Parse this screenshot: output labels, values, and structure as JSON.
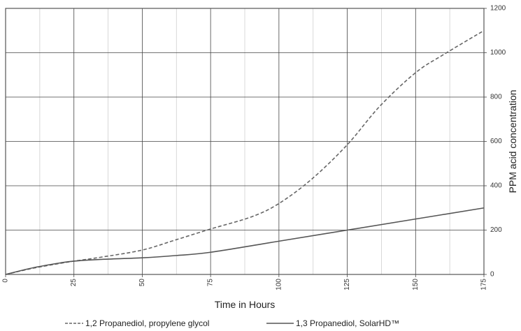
{
  "chart_data": {
    "type": "line",
    "title": "",
    "xlabel": "Time in Hours",
    "ylabel": "PPM acid concentration",
    "xlim": [
      0,
      175
    ],
    "ylim": [
      0,
      1200
    ],
    "x_ticks": [
      0,
      25,
      50,
      75,
      100,
      125,
      150,
      175
    ],
    "y_ticks": [
      0,
      200,
      400,
      600,
      800,
      1000,
      1200
    ],
    "x_ticks_label": [
      "0",
      "25",
      "50",
      "75",
      "100",
      "125",
      "150",
      "175"
    ],
    "y_ticks_label": [
      "0",
      "200",
      "400",
      "600",
      "800",
      "1000",
      "1200"
    ],
    "y_axis_side": "right",
    "grid": true,
    "legend_position": "bottom",
    "series": [
      {
        "name": "1,2 Propanediol, propylene glycol",
        "style": "dashed",
        "color": "#666666",
        "x": [
          0,
          10,
          20,
          25,
          35,
          50,
          62,
          75,
          90,
          100,
          112,
          125,
          137,
          150,
          160,
          175
        ],
        "y": [
          0,
          28,
          50,
          60,
          78,
          110,
          155,
          205,
          260,
          320,
          430,
          585,
          760,
          910,
          990,
          1100
        ]
      },
      {
        "name": "1,3 Propanediol, SolarHD™",
        "style": "solid",
        "color": "#555555",
        "x": [
          0,
          10,
          20,
          25,
          35,
          50,
          62,
          75,
          100,
          125,
          150,
          175
        ],
        "y": [
          0,
          30,
          52,
          60,
          68,
          75,
          85,
          100,
          150,
          200,
          250,
          300
        ]
      }
    ]
  }
}
